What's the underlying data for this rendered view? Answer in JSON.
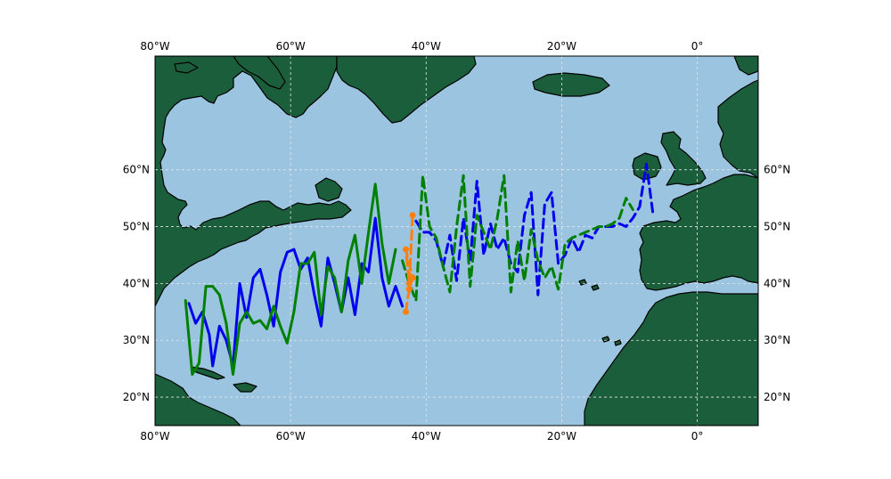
{
  "map": {
    "projection": "PlateCarree",
    "extent": {
      "lon_min": -80,
      "lon_max": 9,
      "lat_min": 15,
      "lat_max": 80
    },
    "gridlines": true,
    "colors": {
      "ocean": "#9bc4e0",
      "land": "#1b5e3c",
      "coastline": "#000000",
      "grid": "#e6e6e6"
    },
    "x_ticks": [
      {
        "value": -80,
        "label": "80°W"
      },
      {
        "value": -60,
        "label": "60°W"
      },
      {
        "value": -40,
        "label": "40°W"
      },
      {
        "value": -20,
        "label": "20°W"
      },
      {
        "value": 0,
        "label": "0°"
      }
    ],
    "y_ticks": [
      {
        "value": 20,
        "label": "20°N"
      },
      {
        "value": 30,
        "label": "30°N"
      },
      {
        "value": 40,
        "label": "40°N"
      },
      {
        "value": 50,
        "label": "50°N"
      },
      {
        "value": 60,
        "label": "60°N"
      }
    ]
  },
  "chart_data": {
    "type": "line",
    "x_axis": "longitude",
    "y_axis": "latitude",
    "series": [
      {
        "color": "#0000ee",
        "style": "solid",
        "points": [
          [
            -75,
            36.5
          ],
          [
            -74,
            33
          ],
          [
            -73,
            35
          ],
          [
            -72,
            31
          ],
          [
            -71.5,
            25.5
          ],
          [
            -70.5,
            32.5
          ],
          [
            -69.5,
            30
          ],
          [
            -68.5,
            25.5
          ],
          [
            -67.5,
            40
          ],
          [
            -66.5,
            34
          ],
          [
            -65.5,
            41
          ],
          [
            -64.5,
            42.5
          ],
          [
            -63.5,
            38
          ],
          [
            -62.5,
            32.5
          ],
          [
            -61.5,
            42
          ],
          [
            -60.5,
            45.5
          ],
          [
            -59.5,
            46
          ],
          [
            -58.5,
            42.5
          ],
          [
            -57.5,
            44.5
          ],
          [
            -56.5,
            38
          ],
          [
            -55.5,
            32.5
          ],
          [
            -54.5,
            44.5
          ],
          [
            -53.5,
            40
          ],
          [
            -52.5,
            35
          ],
          [
            -51.5,
            41
          ],
          [
            -50.5,
            34.5
          ],
          [
            -49.5,
            43.5
          ],
          [
            -48.5,
            42
          ],
          [
            -47.5,
            51.5
          ],
          [
            -46.5,
            41
          ],
          [
            -45.5,
            36
          ],
          [
            -44.5,
            39.5
          ],
          [
            -43.5,
            36
          ]
        ]
      },
      {
        "color": "#0000ee",
        "style": "dashed",
        "points": [
          [
            -41.5,
            51
          ],
          [
            -40.5,
            49
          ],
          [
            -39.5,
            49
          ],
          [
            -38.5,
            47.5
          ],
          [
            -37.5,
            43
          ],
          [
            -36.5,
            48.5
          ],
          [
            -35.5,
            40.5
          ],
          [
            -34.5,
            51.5
          ],
          [
            -33.5,
            44
          ],
          [
            -32.5,
            58
          ],
          [
            -31.5,
            45
          ],
          [
            -30.5,
            50.5
          ],
          [
            -29.5,
            46
          ],
          [
            -28.5,
            48
          ],
          [
            -27.5,
            43.5
          ],
          [
            -26.5,
            42
          ],
          [
            -25.5,
            52
          ],
          [
            -24.5,
            56
          ],
          [
            -23.5,
            38
          ],
          [
            -22.5,
            54
          ],
          [
            -21.5,
            56
          ],
          [
            -20.5,
            43.5
          ],
          [
            -19.5,
            45
          ],
          [
            -18.5,
            48
          ],
          [
            -17.5,
            45.5
          ],
          [
            -16.5,
            48.5
          ],
          [
            -15.5,
            48
          ],
          [
            -14.5,
            50
          ],
          [
            -13.5,
            50
          ],
          [
            -12.5,
            50
          ],
          [
            -11.5,
            50.5
          ],
          [
            -10.5,
            50
          ],
          [
            -9.5,
            51.5
          ],
          [
            -8.5,
            53.5
          ],
          [
            -7.5,
            61
          ],
          [
            -6.5,
            52
          ]
        ]
      },
      {
        "color": "#008000",
        "style": "solid",
        "points": [
          [
            -75.5,
            37
          ],
          [
            -74.5,
            24
          ],
          [
            -73.5,
            26
          ],
          [
            -72.5,
            39.5
          ],
          [
            -71.5,
            39.5
          ],
          [
            -70.5,
            38
          ],
          [
            -69.5,
            33
          ],
          [
            -68.5,
            24
          ],
          [
            -67.5,
            33
          ],
          [
            -66.5,
            35
          ],
          [
            -65.5,
            33
          ],
          [
            -64.5,
            33.5
          ],
          [
            -63.5,
            32
          ],
          [
            -62.5,
            36
          ],
          [
            -61.5,
            32.5
          ],
          [
            -60.5,
            29.5
          ],
          [
            -59.5,
            35
          ],
          [
            -58.5,
            43.5
          ],
          [
            -57.5,
            43.5
          ],
          [
            -56.5,
            45.5
          ],
          [
            -55.5,
            34.5
          ],
          [
            -54.5,
            43
          ],
          [
            -53.5,
            41
          ],
          [
            -52.5,
            35
          ],
          [
            -51.5,
            44
          ],
          [
            -50.5,
            48.5
          ],
          [
            -49.5,
            40
          ],
          [
            -48.5,
            49
          ],
          [
            -47.5,
            57.5
          ],
          [
            -46.5,
            47
          ],
          [
            -45.5,
            40
          ],
          [
            -44.5,
            46
          ]
        ]
      },
      {
        "color": "#008000",
        "style": "dashed",
        "points": [
          [
            -43.5,
            44
          ],
          [
            -42.5,
            40
          ],
          [
            -41.5,
            37
          ],
          [
            -40.5,
            59
          ],
          [
            -39.5,
            50
          ],
          [
            -38.5,
            48
          ],
          [
            -37.5,
            43
          ],
          [
            -36.5,
            38.5
          ],
          [
            -35.5,
            50
          ],
          [
            -34.5,
            59
          ],
          [
            -33.5,
            39.5
          ],
          [
            -32.5,
            52
          ],
          [
            -31.5,
            49
          ],
          [
            -30.5,
            46
          ],
          [
            -29.5,
            51.5
          ],
          [
            -28.5,
            59
          ],
          [
            -27.5,
            38.5
          ],
          [
            -26.5,
            47.5
          ],
          [
            -25.5,
            40.5
          ],
          [
            -24.5,
            49.5
          ],
          [
            -23.5,
            44
          ],
          [
            -22.5,
            41
          ],
          [
            -21.5,
            43
          ],
          [
            -20.5,
            39
          ],
          [
            -19.5,
            47
          ],
          [
            -18.5,
            48
          ],
          [
            -17.5,
            48.5
          ],
          [
            -16.5,
            49
          ],
          [
            -15.5,
            49.5
          ],
          [
            -14.5,
            50
          ],
          [
            -13.5,
            50
          ],
          [
            -12.5,
            50.5
          ],
          [
            -11.5,
            51.5
          ],
          [
            -10.5,
            55
          ],
          [
            -9.5,
            53
          ]
        ]
      },
      {
        "color": "#ff7f0e",
        "style": "dashed",
        "markers": true,
        "points": [
          [
            -43,
            35
          ],
          [
            -42.5,
            39
          ],
          [
            -42,
            41
          ],
          [
            -43,
            46
          ],
          [
            -42.5,
            40
          ],
          [
            -42,
            52
          ]
        ]
      }
    ]
  }
}
